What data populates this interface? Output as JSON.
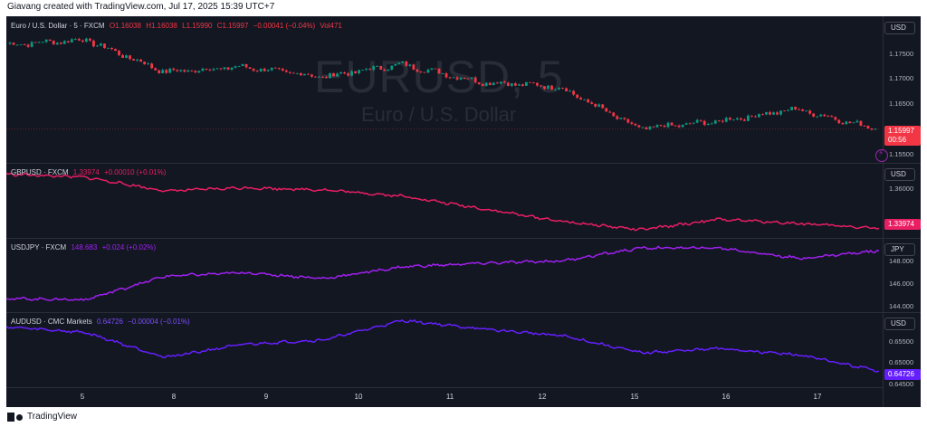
{
  "header": {
    "credit": "Giavang created with TradingView.com, Jul 17, 2025 15:39 UTC+7"
  },
  "footer": {
    "brand": "TradingView"
  },
  "watermark": {
    "symbol": "EURUSD, 5",
    "description": "Euro / U.S. Dollar"
  },
  "alert_icon": "lightning-icon",
  "colors": {
    "background": "#131722",
    "up_candle": "#089981",
    "down_candle": "#f23645",
    "gbpusd_line": "#e91e63",
    "usdjpy_line": "#a020f0",
    "audusd_line": "#651fff",
    "last_price_eurusd": "#f23645"
  },
  "panes": [
    {
      "legend": {
        "name": "Euro / U.S. Dollar · 5 · FXCM",
        "open": "O1.16038",
        "high": "H1.16038",
        "low": "L1.15990",
        "close": "C1.15997",
        "change": "−0.00041 (−0.04%)",
        "volume": "Vol471"
      },
      "currency": "USD",
      "ticks": [
        "1.17500",
        "1.17000",
        "1.16500",
        "1.15500"
      ],
      "last_value": "1.15997",
      "countdown": "00:56"
    },
    {
      "legend": {
        "name": "GBPUSD · FXCM",
        "last": "1.33974",
        "change": "+0.00010 (+0.01%)"
      },
      "currency": "USD",
      "ticks": [
        "1.36000"
      ],
      "last_value": "1.33974"
    },
    {
      "legend": {
        "name": "USDJPY · FXCM",
        "last": "148.683",
        "change": "+0.024 (+0.02%)"
      },
      "currency": "JPY",
      "ticks": [
        "148.000",
        "146.000",
        "144.000"
      ],
      "last_value": "148.683"
    },
    {
      "legend": {
        "name": "AUDUSD · CMC Markets",
        "last": "0.64726",
        "change": "−0.00004 (−0.01%)"
      },
      "currency": "USD",
      "ticks": [
        "0.65500",
        "0.65000",
        "0.64500"
      ],
      "last_value": "0.64726"
    }
  ],
  "time_axis": [
    "5",
    "8",
    "9",
    "10",
    "11",
    "12",
    "15",
    "16",
    "17"
  ],
  "chart_data": [
    {
      "type": "candlestick",
      "symbol": "EURUSD",
      "x": [
        "Jul 4",
        "Jul 7",
        "Jul 8",
        "Jul 9",
        "Jul 10",
        "Jul 11",
        "Jul 14",
        "Jul 15",
        "Jul 16",
        "Jul 16",
        "Jul 17",
        "Jul 17"
      ],
      "close": [
        1.177,
        1.178,
        1.1715,
        1.1725,
        1.1705,
        1.173,
        1.1695,
        1.1685,
        1.16,
        1.1615,
        1.164,
        1.16
      ],
      "ylim": [
        1.1535,
        1.182
      ]
    },
    {
      "type": "line",
      "symbol": "GBPUSD",
      "x": [
        "Jul 4",
        "Jul 7",
        "Jul 8",
        "Jul 9",
        "Jul 10",
        "Jul 11",
        "Jul 14",
        "Jul 15",
        "Jul 16",
        "Jul 16",
        "Jul 17",
        "Jul 17"
      ],
      "values": [
        1.3655,
        1.364,
        1.3575,
        1.359,
        1.358,
        1.355,
        1.349,
        1.343,
        1.339,
        1.344,
        1.342,
        1.3397
      ],
      "ylim": [
        1.336,
        1.37
      ]
    },
    {
      "type": "line",
      "symbol": "USDJPY",
      "x": [
        "Jul 4",
        "Jul 7",
        "Jul 8",
        "Jul 9",
        "Jul 10",
        "Jul 11",
        "Jul 14",
        "Jul 15",
        "Jul 16",
        "Jul 16",
        "Jul 17",
        "Jul 17"
      ],
      "values": [
        144.6,
        144.5,
        146.5,
        146.8,
        146.3,
        147.3,
        147.6,
        147.8,
        148.9,
        148.9,
        148.0,
        148.68
      ],
      "ylim": [
        143.6,
        149.6
      ]
    },
    {
      "type": "line",
      "symbol": "AUDUSD",
      "x": [
        "Jul 4",
        "Jul 7",
        "Jul 8",
        "Jul 9",
        "Jul 10",
        "Jul 11",
        "Jul 14",
        "Jul 15",
        "Jul 16",
        "Jul 16",
        "Jul 17",
        "Jul 17"
      ],
      "values": [
        0.6575,
        0.6562,
        0.6505,
        0.6535,
        0.6545,
        0.659,
        0.657,
        0.6555,
        0.6515,
        0.6525,
        0.651,
        0.6473
      ],
      "ylim": [
        0.644,
        0.6605
      ]
    }
  ]
}
